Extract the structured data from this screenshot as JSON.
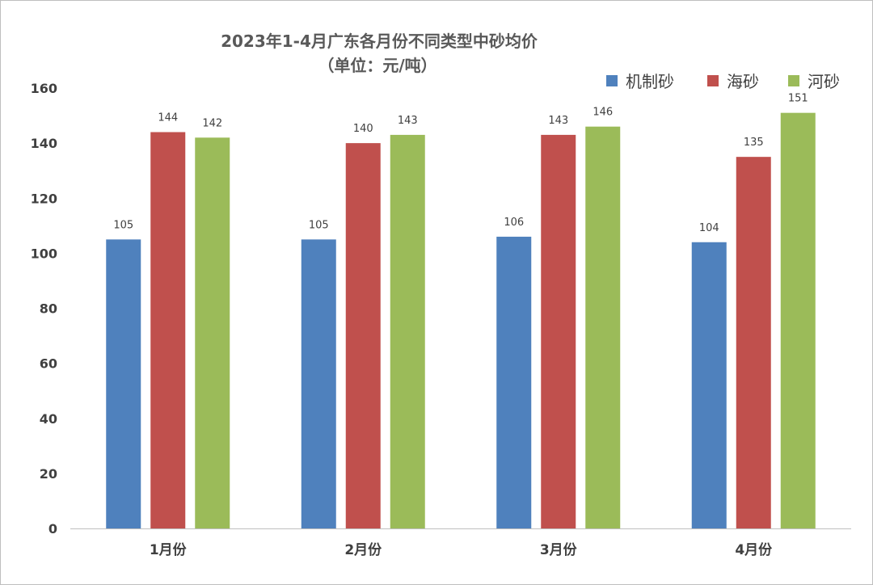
{
  "chart_data": {
    "type": "bar",
    "title": "2023年1-4月广东各月份不同类型中砂均价",
    "subtitle": "（单位：元/吨）",
    "xlabel": "",
    "ylabel": "",
    "categories": [
      "1月份",
      "2月份",
      "3月份",
      "4月份"
    ],
    "series": [
      {
        "name": "机制砂",
        "color": "#4f81bd",
        "values": [
          105,
          105,
          106,
          104
        ]
      },
      {
        "name": "海砂",
        "color": "#c0504d",
        "values": [
          144,
          140,
          143,
          135
        ]
      },
      {
        "name": "河砂",
        "color": "#9bbb59",
        "values": [
          142,
          143,
          146,
          151
        ]
      }
    ],
    "ylim": [
      0,
      160
    ],
    "yticks": [
      0,
      20,
      40,
      60,
      80,
      100,
      120,
      140,
      160
    ],
    "grid": false,
    "legend": "top-right",
    "data_labels": true
  }
}
